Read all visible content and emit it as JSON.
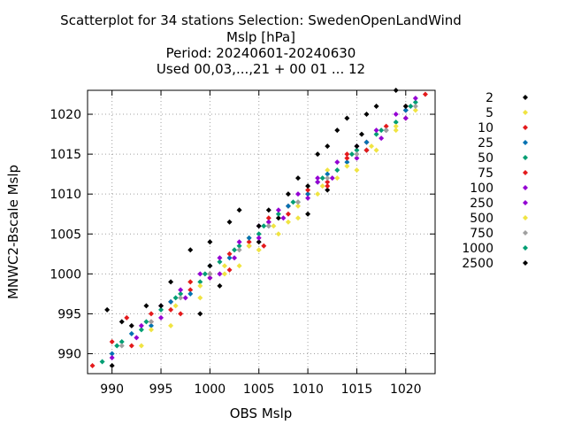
{
  "chart_data": {
    "type": "scatter",
    "title_lines": [
      "Scatterplot for   34 stations Selection: SwedenOpenLandWind",
      "Mslp [hPa]",
      "Period: 20240601-20240630",
      "Used 00,03,...,21 + 00 01 ... 12"
    ],
    "xlabel": "OBS Mslp",
    "ylabel": "MNWC2-Bscale Mslp",
    "xlim": [
      987.5,
      1023
    ],
    "ylim": [
      987.5,
      1023
    ],
    "x_ticks": [
      990,
      995,
      1000,
      1005,
      1010,
      1015,
      1020
    ],
    "y_ticks": [
      990,
      995,
      1000,
      1005,
      1010,
      1015,
      1020
    ],
    "grid": true,
    "legend_position": "right",
    "series": [
      {
        "name": "2",
        "color": "#000000",
        "points": [
          [
            989.5,
            995.5
          ],
          [
            991,
            994
          ],
          [
            992,
            993.5
          ],
          [
            993.5,
            996
          ],
          [
            996,
            999
          ],
          [
            998,
            1003
          ],
          [
            1000,
            1004
          ],
          [
            1002,
            1006.5
          ],
          [
            1003,
            1008
          ],
          [
            1005,
            1004
          ],
          [
            1006,
            1008
          ],
          [
            1008,
            1010
          ],
          [
            1009,
            1012
          ],
          [
            1011,
            1015
          ],
          [
            1012,
            1016
          ],
          [
            1013,
            1018
          ],
          [
            1014,
            1019.5
          ],
          [
            1016,
            1020
          ],
          [
            1017,
            1021
          ],
          [
            1019,
            1023
          ],
          [
            1012,
            1010.5
          ],
          [
            1010,
            1007.5
          ],
          [
            999,
            995
          ],
          [
            1001,
            998.5
          ],
          [
            1007,
            1007
          ],
          [
            1015.5,
            1017.5
          ],
          [
            990,
            988.5
          ],
          [
            1016,
            1015.5
          ],
          [
            1020,
            1020.5
          ]
        ]
      },
      {
        "name": "5",
        "color": "#f0e442",
        "points": [
          [
            993,
            991
          ],
          [
            996,
            993.5
          ],
          [
            999,
            997
          ],
          [
            1001.5,
            1000
          ],
          [
            1003,
            1001
          ],
          [
            1005,
            1003
          ],
          [
            1007,
            1005
          ],
          [
            1009,
            1007
          ],
          [
            1011,
            1010
          ],
          [
            1013,
            1012
          ],
          [
            1015,
            1013
          ],
          [
            1017,
            1015.5
          ],
          [
            1019,
            1018
          ],
          [
            1021,
            1020.5
          ],
          [
            998,
            999
          ],
          [
            1004,
            1004.5
          ],
          [
            1008,
            1006.5
          ],
          [
            1012,
            1013
          ]
        ]
      },
      {
        "name": "10",
        "color": "#e41a1c",
        "points": [
          [
            988,
            988.5
          ],
          [
            990,
            991.5
          ],
          [
            991.5,
            994.5
          ],
          [
            994,
            994
          ],
          [
            996,
            996.5
          ],
          [
            998,
            998
          ],
          [
            1000,
            999.5
          ],
          [
            1002,
            1000.5
          ],
          [
            1004,
            1004
          ],
          [
            1006,
            1007
          ],
          [
            1008,
            1008.5
          ],
          [
            1010,
            1010
          ],
          [
            1012,
            1011
          ],
          [
            1014,
            1015
          ],
          [
            1016,
            1016.5
          ],
          [
            1018,
            1018
          ],
          [
            1020,
            1021
          ],
          [
            1022,
            1022.5
          ],
          [
            997,
            995
          ],
          [
            1005.5,
            1003.5
          ]
        ]
      },
      {
        "name": "25",
        "color": "#0072b2",
        "points": [
          [
            990,
            990
          ],
          [
            992,
            992.5
          ],
          [
            994,
            993.5
          ],
          [
            996,
            996.5
          ],
          [
            998,
            997.5
          ],
          [
            1000,
            1001
          ],
          [
            1002,
            1002
          ],
          [
            1004,
            1004.5
          ],
          [
            1006,
            1006
          ],
          [
            1008,
            1008.5
          ],
          [
            1010,
            1010
          ],
          [
            1012,
            1012.5
          ],
          [
            1014,
            1014
          ],
          [
            1016,
            1016.5
          ],
          [
            1018,
            1018
          ],
          [
            1020,
            1020.5
          ]
        ]
      },
      {
        "name": "50",
        "color": "#009e73",
        "points": [
          [
            989,
            989
          ],
          [
            991,
            991.5
          ],
          [
            993,
            993
          ],
          [
            995,
            995.5
          ],
          [
            997,
            997.5
          ],
          [
            999,
            999
          ],
          [
            1001,
            1001.5
          ],
          [
            1003,
            1003.5
          ],
          [
            1005,
            1005
          ],
          [
            1007,
            1007.5
          ],
          [
            1009,
            1009
          ],
          [
            1011,
            1011.5
          ],
          [
            1013,
            1013
          ],
          [
            1015,
            1015.5
          ],
          [
            1017,
            1017.5
          ],
          [
            1019,
            1019
          ],
          [
            1021,
            1021.5
          ]
        ]
      },
      {
        "name": "75",
        "color": "#e41a1c",
        "points": [
          [
            992,
            991
          ],
          [
            994,
            995
          ],
          [
            996,
            995.5
          ],
          [
            998,
            999
          ],
          [
            1000,
            1000
          ],
          [
            1002,
            1002.5
          ],
          [
            1004,
            1003.5
          ],
          [
            1006,
            1006.5
          ],
          [
            1008,
            1007.5
          ],
          [
            1010,
            1010.5
          ],
          [
            1012,
            1011.5
          ],
          [
            1014,
            1014.5
          ],
          [
            1016,
            1015.5
          ],
          [
            1018,
            1018.5
          ],
          [
            1020,
            1019.5
          ]
        ]
      },
      {
        "name": "100",
        "color": "#9400d3",
        "points": [
          [
            990,
            989.5
          ],
          [
            992.5,
            992
          ],
          [
            995,
            994.5
          ],
          [
            997.5,
            997
          ],
          [
            1000,
            999.5
          ],
          [
            1002.5,
            1002
          ],
          [
            1005,
            1004.5
          ],
          [
            1007.5,
            1007
          ],
          [
            1010,
            1009.5
          ],
          [
            1012.5,
            1012
          ],
          [
            1015,
            1014.5
          ],
          [
            1017.5,
            1017
          ],
          [
            1020,
            1019.5
          ],
          [
            1011,
            1011.5
          ],
          [
            1006,
            1006.5
          ],
          [
            1001,
            1000
          ]
        ]
      },
      {
        "name": "250",
        "color": "#9400d3",
        "points": [
          [
            993,
            993.5
          ],
          [
            995,
            996
          ],
          [
            997,
            998
          ],
          [
            999,
            1000
          ],
          [
            1001,
            1002
          ],
          [
            1003,
            1004
          ],
          [
            1005,
            1006
          ],
          [
            1007,
            1008
          ],
          [
            1009,
            1010
          ],
          [
            1011,
            1012
          ],
          [
            1013,
            1014
          ],
          [
            1015,
            1016
          ],
          [
            1017,
            1018
          ],
          [
            1019,
            1020
          ],
          [
            1021,
            1022
          ]
        ]
      },
      {
        "name": "500",
        "color": "#f0e442",
        "points": [
          [
            994,
            993
          ],
          [
            996.5,
            996
          ],
          [
            999,
            998.5
          ],
          [
            1001.5,
            1001
          ],
          [
            1004,
            1003.5
          ],
          [
            1006.5,
            1006
          ],
          [
            1009,
            1008.5
          ],
          [
            1011.5,
            1011
          ],
          [
            1014,
            1013.5
          ],
          [
            1016.5,
            1016
          ],
          [
            1019,
            1018.5
          ]
        ]
      },
      {
        "name": "750",
        "color": "#a0a0a0",
        "points": [
          [
            991,
            991
          ],
          [
            994,
            994
          ],
          [
            997,
            997
          ],
          [
            1000,
            1000
          ],
          [
            1003,
            1003
          ],
          [
            1006,
            1006
          ],
          [
            1009,
            1009
          ],
          [
            1012,
            1012
          ],
          [
            1015,
            1015
          ],
          [
            1018,
            1018
          ],
          [
            1021,
            1021
          ]
        ]
      },
      {
        "name": "1000",
        "color": "#009e73",
        "points": [
          [
            990.5,
            991
          ],
          [
            993.5,
            994
          ],
          [
            996.5,
            997
          ],
          [
            999.5,
            1000
          ],
          [
            1002.5,
            1003
          ],
          [
            1005.5,
            1006
          ],
          [
            1008.5,
            1009
          ],
          [
            1011.5,
            1012
          ],
          [
            1014.5,
            1015
          ],
          [
            1017.5,
            1018
          ],
          [
            1020.5,
            1021
          ]
        ]
      },
      {
        "name": "2500",
        "color": "#000000",
        "points": [
          [
            995,
            996
          ],
          [
            1000,
            1001
          ],
          [
            1005,
            1006
          ],
          [
            1010,
            1011
          ],
          [
            1015,
            1016
          ],
          [
            1020,
            1021
          ]
        ]
      }
    ]
  }
}
